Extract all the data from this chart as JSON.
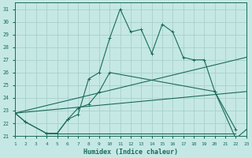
{
  "xlabel": "Humidex (Indice chaleur)",
  "bg_color": "#c5e8e5",
  "grid_color": "#a8d0cc",
  "line_color": "#1a6b5a",
  "xlim": [
    1,
    23
  ],
  "ylim": [
    21,
    31.5
  ],
  "xticks": [
    1,
    2,
    3,
    4,
    5,
    6,
    7,
    8,
    9,
    10,
    11,
    12,
    13,
    14,
    15,
    16,
    17,
    18,
    19,
    20,
    21,
    22,
    23
  ],
  "yticks": [
    21,
    22,
    23,
    24,
    25,
    26,
    27,
    28,
    29,
    30,
    31
  ],
  "line1_x": [
    1,
    2,
    4,
    5,
    6,
    7,
    8,
    9,
    10,
    11,
    12,
    13,
    14,
    15,
    16,
    17,
    18,
    19,
    20,
    22,
    23
  ],
  "line1_y": [
    22.8,
    22.1,
    21.2,
    21.2,
    22.3,
    22.7,
    25.5,
    26.0,
    28.7,
    31.0,
    29.2,
    29.4,
    27.5,
    29.8,
    29.2,
    27.2,
    27.0,
    27.0,
    24.5,
    20.8,
    21.5
  ],
  "line2_x": [
    1,
    2,
    4,
    5,
    6,
    7,
    8,
    9,
    10,
    20,
    22
  ],
  "line2_y": [
    22.8,
    22.1,
    21.2,
    21.2,
    22.3,
    23.2,
    23.5,
    24.5,
    26.0,
    24.5,
    21.5
  ],
  "line3_x": [
    1,
    23
  ],
  "line3_y": [
    22.8,
    27.2
  ],
  "line4_x": [
    1,
    23
  ],
  "line4_y": [
    22.8,
    24.5
  ],
  "line5_x": [
    4,
    22
  ],
  "line5_y": [
    21.2,
    21.2
  ]
}
